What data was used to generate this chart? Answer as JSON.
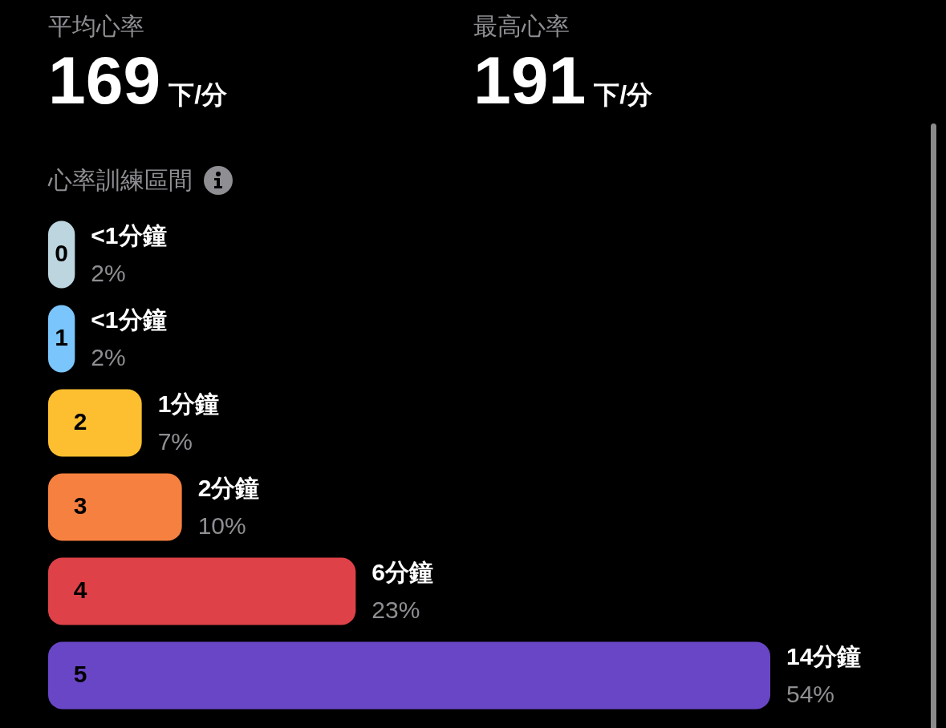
{
  "chart_data": [
    {
      "type": "other",
      "title": "平均心率",
      "annotations": [
        "169",
        "下/分"
      ]
    },
    {
      "type": "other",
      "title": "最高心率",
      "annotations": [
        "191",
        "下/分"
      ]
    },
    {
      "type": "bar",
      "orientation": "horizontal",
      "title": "心率訓練區間",
      "categories": [
        "0",
        "1",
        "2",
        "3",
        "4",
        "5"
      ],
      "values": [
        2,
        2,
        7,
        10,
        23,
        54
      ],
      "colors": [
        "#bcd5de",
        "#7ac5fc",
        "#fdbf30",
        "#f6803f",
        "#de4248",
        "#6946c6"
      ],
      "value_labels": [
        "2%",
        "2%",
        "7%",
        "10%",
        "23%",
        "54%"
      ],
      "annotations": [
        {
          "text": "<1分鐘",
          "x": 2,
          "y": "0"
        },
        {
          "text": "<1分鐘",
          "x": 2,
          "y": "1"
        },
        {
          "text": "1分鐘",
          "x": 7,
          "y": "2"
        },
        {
          "text": "2分鐘",
          "x": 10,
          "y": "3"
        },
        {
          "text": "6分鐘",
          "x": 23,
          "y": "4"
        },
        {
          "text": "14分鐘",
          "x": 54,
          "y": "5"
        }
      ],
      "tick_labels": "y"
    }
  ]
}
